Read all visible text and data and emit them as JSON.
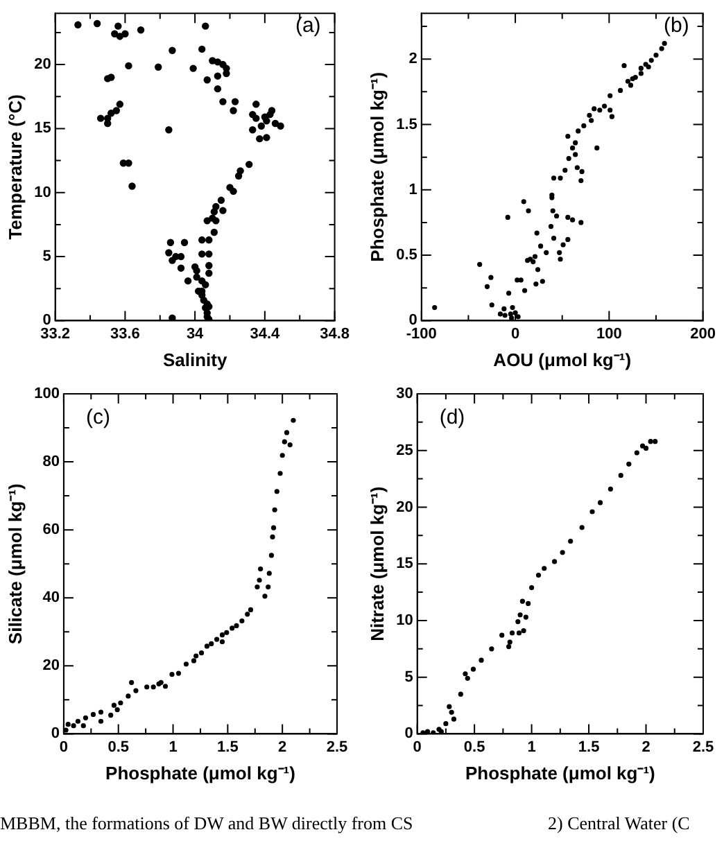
{
  "chart_data": [
    {
      "type": "scatter",
      "xlabel": "Salinity",
      "ylabel": "Temperature (°C)",
      "xlim": [
        33.2,
        34.8
      ],
      "ylim": [
        0,
        24
      ],
      "xticks": [
        33.2,
        {
          "value": 33.4,
          "label": null
        },
        33.6,
        {
          "value": 33.8,
          "label": null
        },
        34,
        {
          "value": 34.2,
          "label": null
        },
        34.4,
        {
          "value": 34.6,
          "label": null
        },
        34.8
      ],
      "yticks": [
        0,
        {
          "value": 2.5,
          "label": null
        },
        5,
        {
          "value": 7.5,
          "label": null
        },
        10,
        {
          "value": 12.5,
          "label": null
        },
        15,
        {
          "value": 17.5,
          "label": null
        },
        20,
        {
          "value": 22.5,
          "label": null
        }
      ],
      "marker": "circle",
      "annotations": [
        "(a)"
      ],
      "series": [
        {
          "color": "#000000",
          "x": [
            33.33,
            33.44,
            33.56,
            33.54,
            33.57,
            33.6,
            33.69,
            34.06,
            33.87,
            34.04,
            33.62,
            33.79,
            33.99,
            33.5,
            33.52,
            34.07,
            34.1,
            34.13,
            34.16,
            34.18,
            34.13,
            34.18,
            34.13,
            34.16,
            34.23,
            34.22,
            33.46,
            33.5,
            33.5,
            33.52,
            33.55,
            33.57,
            33.85,
            34.35,
            34.33,
            34.35,
            34.4,
            34.43,
            34.44,
            34.41,
            34.46,
            34.49,
            34.38,
            34.33,
            34.37,
            34.41,
            33.59,
            33.62,
            34.31,
            34.26,
            34.25,
            33.64,
            34.2,
            34.22,
            34.15,
            34.12,
            34.16,
            34.11,
            34.07,
            34.1,
            34.12,
            34.11,
            34.04,
            34.08,
            33.86,
            33.94,
            33.85,
            33.89,
            33.92,
            34.04,
            34.08,
            33.87,
            33.92,
            34.0,
            34.01,
            34.08,
            34.08,
            33.96,
            34.01,
            34.04,
            34.06,
            34.02,
            34.04,
            34.05,
            34.07,
            34.06,
            34.07,
            34.07,
            34.08,
            33.87,
            34.04,
            34.08
          ],
          "values": [
            23.1,
            23.2,
            23.0,
            22.4,
            22.2,
            22.4,
            22.7,
            23.0,
            21.1,
            21.2,
            19.9,
            19.8,
            19.7,
            18.9,
            19.0,
            18.8,
            20.3,
            20.2,
            20.0,
            19.7,
            19.1,
            19.3,
            18.1,
            17.1,
            17.1,
            16.4,
            15.8,
            15.8,
            15.4,
            16.2,
            16.4,
            16.9,
            14.9,
            16.9,
            16.1,
            15.8,
            15.9,
            16.1,
            16.4,
            15.6,
            15.4,
            15.2,
            15.2,
            14.9,
            14.2,
            14.3,
            12.3,
            12.3,
            12.2,
            11.7,
            11.3,
            10.5,
            10.4,
            10.1,
            9.4,
            8.9,
            8.6,
            8.5,
            7.8,
            8.0,
            7.8,
            6.9,
            6.3,
            6.3,
            6.1,
            6.1,
            5.3,
            5.0,
            5.0,
            5.2,
            5.2,
            4.7,
            4.1,
            4.2,
            3.9,
            4.3,
            3.7,
            3.1,
            3.4,
            3.1,
            2.8,
            2.3,
            2.0,
            1.6,
            1.3,
            1.0,
            0.6,
            0.3,
            0.1,
            0.2,
            2.3,
            1.1
          ]
        }
      ]
    },
    {
      "type": "scatter",
      "xlabel": "AOU (μmol kg⁻¹)",
      "ylabel": "Phosphate (μmol kg⁻¹)",
      "xlim": [
        -100,
        200
      ],
      "ylim": [
        0,
        2.35
      ],
      "xticks": [
        -100,
        {
          "value": -50,
          "label": null
        },
        0,
        {
          "value": 50,
          "label": null
        },
        100,
        {
          "value": 150,
          "label": null
        },
        200
      ],
      "yticks": [
        0,
        {
          "value": 0.25,
          "label": null
        },
        0.5,
        {
          "value": 0.75,
          "label": null
        },
        1,
        {
          "value": 1.25,
          "label": null
        },
        1.5,
        {
          "value": 1.75,
          "label": null
        },
        2,
        {
          "value": 2.25,
          "label": null
        }
      ],
      "marker": "circle",
      "annotations": [
        "(b)"
      ],
      "series": [
        {
          "color": "#000000",
          "x": [
            -86,
            -38,
            -30,
            -26,
            -25,
            -8,
            -7,
            -16,
            -11,
            -5,
            0,
            -12,
            -3,
            3,
            -4,
            2,
            6,
            10,
            9,
            14,
            16,
            21,
            23,
            24,
            27,
            22,
            29,
            33,
            38,
            39,
            40,
            44,
            41,
            47,
            48,
            51,
            56,
            48,
            41,
            53,
            57,
            61,
            56,
            64,
            66,
            71,
            70,
            67,
            73,
            87,
            79,
            84,
            90,
            95,
            101,
            103,
            101,
            112,
            116,
            120,
            128,
            134,
            139,
            145,
            150,
            156,
            159,
            70,
            61,
            13,
            19,
            64,
            56,
            39,
            81,
            123,
            134,
            142,
            125
          ],
          "values": [
            0.1,
            0.43,
            0.26,
            0.33,
            0.12,
            0.79,
            0.21,
            0.05,
            0.04,
            0.05,
            0.06,
            0.09,
            0.1,
            0.03,
            0.02,
            0.31,
            0.31,
            0.23,
            0.91,
            0.84,
            0.47,
            0.49,
            0.67,
            0.39,
            0.57,
            0.28,
            0.3,
            0.52,
            0.72,
            0.94,
            0.84,
            0.8,
            0.63,
            0.52,
            0.47,
            0.58,
            0.62,
            1.09,
            1.09,
            1.15,
            1.24,
            1.32,
            1.41,
            1.36,
            1.17,
            1.14,
            1.07,
            1.45,
            1.49,
            1.32,
            1.57,
            1.62,
            1.61,
            1.64,
            1.61,
            1.56,
            1.72,
            1.76,
            1.95,
            1.83,
            1.86,
            1.93,
            1.96,
            1.99,
            2.03,
            2.08,
            2.12,
            0.75,
            0.77,
            0.46,
            0.45,
            1.27,
            0.79,
            0.96,
            1.53,
            1.8,
            1.89,
            1.94,
            1.85
          ]
        }
      ]
    },
    {
      "type": "scatter",
      "xlabel": "Phosphate (μmol kg⁻¹)",
      "ylabel": "Silicate (μmol kg⁻¹)",
      "xlim": [
        0,
        2.5
      ],
      "ylim": [
        0,
        100
      ],
      "xticks": [
        0,
        {
          "value": 0.25,
          "label": null
        },
        0.5,
        {
          "value": 0.75,
          "label": null
        },
        1,
        {
          "value": 1.25,
          "label": null
        },
        1.5,
        {
          "value": 1.75,
          "label": null
        },
        2,
        {
          "value": 2.25,
          "label": null
        },
        2.5
      ],
      "yticks": [
        0,
        {
          "value": 10,
          "label": null
        },
        20,
        {
          "value": 30,
          "label": null
        },
        40,
        {
          "value": 50,
          "label": null
        },
        60,
        {
          "value": 70,
          "label": null
        },
        80,
        {
          "value": 90,
          "label": null
        },
        100
      ],
      "marker": "circle",
      "annotations": [
        "(c)"
      ],
      "series": [
        {
          "color": "#000000",
          "x": [
            0.02,
            0.04,
            0.09,
            0.13,
            0.2,
            0.27,
            0.34,
            0.43,
            0.49,
            0.52,
            0.59,
            0.62,
            0.66,
            0.76,
            0.82,
            0.89,
            0.93,
            0.99,
            1.05,
            1.12,
            1.19,
            1.26,
            1.31,
            1.35,
            1.4,
            1.45,
            1.49,
            1.54,
            1.58,
            1.63,
            1.68,
            1.71,
            1.77,
            1.79,
            1.8,
            1.84,
            1.87,
            1.88,
            1.9,
            1.91,
            1.92,
            1.93,
            1.95,
            1.98,
            2.0,
            2.02,
            2.04,
            2.1,
            2.07,
            1.45,
            1.21,
            0.87,
            0.46,
            0.18,
            0.34
          ],
          "values": [
            1.1,
            2.8,
            2.4,
            3.7,
            4.7,
            5.7,
            6.4,
            5.5,
            7.1,
            9.1,
            11.1,
            15.1,
            12.7,
            13.8,
            13.8,
            15.1,
            14.0,
            17.5,
            17.8,
            20.5,
            21.5,
            23.8,
            25.8,
            26.5,
            27.8,
            29.1,
            29.8,
            31.1,
            31.8,
            33.2,
            35.2,
            36.5,
            43.2,
            45.2,
            48.5,
            40.5,
            43.2,
            47.2,
            52.5,
            57.9,
            60.6,
            65.9,
            71.3,
            76.6,
            81.9,
            85.9,
            88.6,
            92.2,
            85.0,
            27.1,
            22.9,
            14.7,
            8.4,
            2.4,
            3.7
          ]
        }
      ]
    },
    {
      "type": "scatter",
      "xlabel": "Phosphate (μmol kg⁻¹)",
      "ylabel": "Nitrate (μmol kg⁻¹)",
      "xlim": [
        0,
        2.5
      ],
      "ylim": [
        0,
        30
      ],
      "xticks": [
        0,
        {
          "value": 0.25,
          "label": null
        },
        0.5,
        {
          "value": 0.75,
          "label": null
        },
        1,
        {
          "value": 1.25,
          "label": null
        },
        1.5,
        {
          "value": 1.75,
          "label": null
        },
        2,
        {
          "value": 2.25,
          "label": null
        },
        2.5
      ],
      "yticks": [
        0,
        {
          "value": 2.5,
          "label": null
        },
        5,
        {
          "value": 7.5,
          "label": null
        },
        10,
        {
          "value": 12.5,
          "label": null
        },
        15,
        {
          "value": 17.5,
          "label": null
        },
        20,
        {
          "value": 22.5,
          "label": null
        },
        25,
        {
          "value": 27.5,
          "label": null
        },
        30
      ],
      "marker": "circle",
      "annotations": [
        "(d)",
        "MBBM, the formations of DW and BW directly from CS",
        "2) Central Water (C"
      ],
      "series": [
        {
          "color": "#000000",
          "x": [
            0.05,
            0.09,
            0.14,
            0.19,
            0.21,
            0.25,
            0.28,
            0.3,
            0.32,
            0.38,
            0.42,
            0.44,
            0.49,
            0.56,
            0.65,
            0.74,
            0.81,
            0.83,
            0.88,
            0.9,
            0.89,
            0.93,
            0.95,
            0.92,
            1.0,
            1.06,
            1.11,
            1.2,
            1.27,
            1.34,
            1.44,
            1.53,
            1.6,
            1.69,
            1.78,
            1.85,
            1.92,
            1.97,
            2.04,
            2.08,
            2.0,
            0.8,
            0.97
          ],
          "values": [
            0.1,
            0.2,
            0.1,
            0.4,
            0.2,
            0.9,
            2.4,
            1.9,
            1.3,
            3.5,
            5.3,
            4.9,
            5.7,
            6.5,
            7.5,
            8.7,
            8.1,
            8.9,
            9.9,
            10.5,
            8.9,
            9.1,
            10.3,
            11.7,
            12.9,
            14.0,
            14.6,
            15.2,
            16.0,
            17.0,
            18.2,
            19.6,
            20.4,
            21.6,
            22.8,
            23.8,
            24.8,
            25.4,
            25.8,
            25.8,
            25.2,
            7.7,
            11.5
          ]
        }
      ]
    }
  ]
}
